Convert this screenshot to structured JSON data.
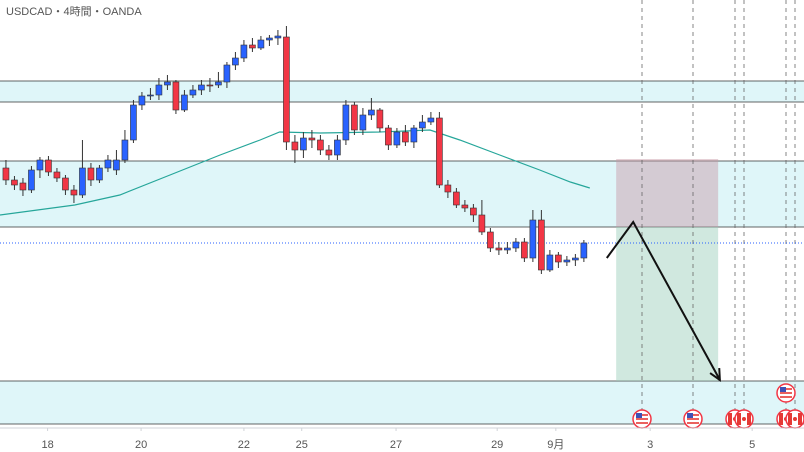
{
  "chart_data": {
    "type": "candlestick",
    "title": "USDCAD・4時間・OANDA",
    "xlim": [
      -0.7,
      93.9
    ],
    "ylim": [
      0,
      452
    ],
    "xticks": [
      {
        "value": 4.9,
        "label": "18"
      },
      {
        "value": 15.9,
        "label": "20"
      },
      {
        "value": 28,
        "label": "22"
      },
      {
        "value": 34.8,
        "label": "25"
      },
      {
        "value": 45.9,
        "label": "27"
      },
      {
        "value": 57.8,
        "label": "29"
      },
      {
        "value": 64.7,
        "label": "9月"
      },
      {
        "value": 75.8,
        "label": "3"
      },
      {
        "value": 87.8,
        "label": "5"
      }
    ],
    "up_color": "#2962ff",
    "down_color": "#f23645",
    "candles": {
      "x": [
        0,
        1,
        2,
        3,
        4,
        5,
        6,
        7,
        8,
        9,
        10,
        11,
        12,
        13,
        14,
        15,
        16,
        17,
        18,
        19,
        20,
        21,
        22,
        23,
        24,
        25,
        26,
        27,
        28,
        29,
        30,
        31,
        32,
        33,
        34,
        35,
        36,
        37,
        38,
        39,
        40,
        41,
        42,
        43,
        44,
        45,
        46,
        47,
        48,
        49,
        50,
        51,
        52,
        53,
        54,
        55,
        56,
        57,
        58,
        59,
        60,
        61,
        62,
        63,
        64,
        65,
        66,
        67,
        68
      ],
      "open": [
        284,
        272,
        269,
        262,
        282,
        292,
        280,
        274,
        262,
        257,
        284,
        272,
        284,
        282,
        292,
        312,
        347,
        356,
        357,
        367,
        370,
        342,
        357,
        362,
        367,
        367,
        370,
        387,
        394,
        407,
        404,
        412,
        414,
        415,
        310,
        302,
        314,
        312,
        302,
        297,
        312,
        347,
        322,
        337,
        342,
        324,
        307,
        320,
        310,
        324,
        330,
        334,
        267,
        260,
        247,
        244,
        237,
        220,
        204,
        202,
        204,
        210,
        194,
        232,
        182,
        197,
        190,
        192,
        194
      ],
      "high": [
        292,
        276,
        274,
        286,
        295,
        296,
        284,
        277,
        267,
        312,
        289,
        287,
        297,
        302,
        322,
        352,
        360,
        364,
        374,
        377,
        372,
        362,
        367,
        372,
        374,
        380,
        390,
        400,
        412,
        414,
        416,
        417,
        422,
        426,
        317,
        320,
        322,
        317,
        307,
        317,
        352,
        350,
        344,
        354,
        344,
        327,
        324,
        327,
        327,
        337,
        340,
        340,
        272,
        264,
        252,
        248,
        252,
        224,
        210,
        210,
        214,
        214,
        242,
        242,
        202,
        200,
        196,
        198,
        212
      ],
      "low": [
        267,
        262,
        256,
        259,
        274,
        276,
        270,
        257,
        249,
        254,
        266,
        269,
        280,
        277,
        289,
        309,
        342,
        352,
        352,
        362,
        338,
        340,
        354,
        357,
        360,
        364,
        364,
        382,
        390,
        400,
        402,
        406,
        407,
        302,
        289,
        294,
        304,
        297,
        292,
        292,
        307,
        317,
        317,
        332,
        320,
        302,
        304,
        306,
        304,
        320,
        327,
        264,
        254,
        244,
        240,
        230,
        217,
        200,
        197,
        198,
        200,
        190,
        190,
        178,
        180,
        184,
        186,
        186,
        190
      ],
      "close": [
        272,
        267,
        262,
        282,
        292,
        280,
        274,
        262,
        257,
        284,
        272,
        284,
        292,
        292,
        312,
        347,
        356,
        357,
        367,
        370,
        342,
        357,
        362,
        367,
        367,
        370,
        387,
        394,
        407,
        404,
        412,
        414,
        416,
        310,
        302,
        314,
        312,
        302,
        297,
        312,
        347,
        322,
        337,
        342,
        324,
        307,
        320,
        310,
        324,
        330,
        334,
        267,
        260,
        247,
        244,
        237,
        220,
        204,
        202,
        204,
        210,
        194,
        232,
        182,
        197,
        190,
        192,
        194,
        209
      ]
    },
    "moving_average": {
      "color": "#26a69a",
      "x": [
        -0.7,
        8.1,
        13.4,
        19.3,
        25.2,
        29.9,
        32.2,
        37,
        44,
        49.9,
        53.4,
        58.1,
        62.8,
        66.4,
        68.7
      ],
      "values": [
        237,
        247,
        257,
        277,
        297,
        312,
        320,
        319,
        320,
        322,
        312,
        297,
        282,
        270,
        264
      ]
    },
    "zones": [
      [
        350,
        371
      ],
      [
        225,
        291
      ],
      [
        28,
        71
      ]
    ],
    "zone_color": "#dff6f9",
    "current_price": 209,
    "position": {
      "x": [
        71.8,
        83.8
      ],
      "entry": 225,
      "stop": 293,
      "target": 71
    },
    "forecast_arrow": {
      "x": [
        70.7,
        73.8,
        84
      ],
      "values": [
        194,
        230,
        72
      ]
    }
  }
}
